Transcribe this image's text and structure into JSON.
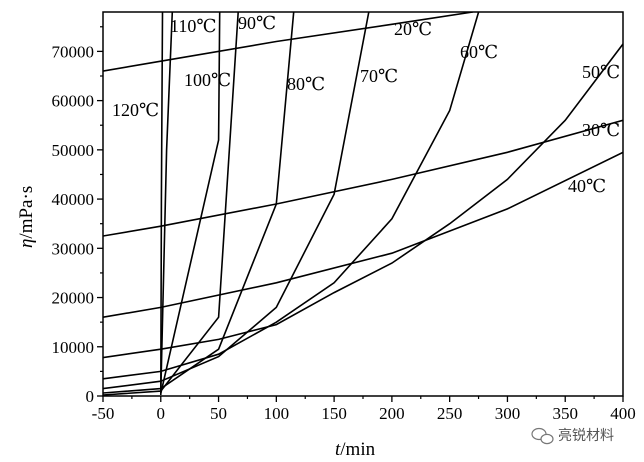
{
  "chart_data": {
    "type": "line",
    "title": "",
    "xlabel": {
      "italic": "t",
      "rest": "/min"
    },
    "ylabel": {
      "italic": "η",
      "rest": "/mPa·s"
    },
    "xlim": [
      -50,
      400
    ],
    "ylim": [
      0,
      78000
    ],
    "xticks": [
      -50,
      0,
      50,
      100,
      150,
      200,
      250,
      300,
      350,
      400
    ],
    "yticks": [
      0,
      10000,
      20000,
      30000,
      40000,
      50000,
      60000,
      70000
    ],
    "grid": false,
    "series": [
      {
        "name": "20℃",
        "x": [
          -50,
          0,
          100,
          200,
          270
        ],
        "y": [
          66000,
          68000,
          72000,
          75500,
          78000
        ]
      },
      {
        "name": "30℃",
        "x": [
          -50,
          0,
          100,
          200,
          300,
          400
        ],
        "y": [
          32500,
          34500,
          39000,
          44000,
          49500,
          56000
        ]
      },
      {
        "name": "40℃",
        "x": [
          -50,
          0,
          100,
          200,
          300,
          400
        ],
        "y": [
          16000,
          18000,
          23000,
          29000,
          38000,
          49500
        ]
      },
      {
        "name": "50℃",
        "x": [
          -50,
          0,
          50,
          100,
          150,
          200,
          250,
          300,
          350,
          400
        ],
        "y": [
          7800,
          9500,
          11500,
          14500,
          21000,
          27000,
          35000,
          44000,
          56000,
          71500
        ]
      },
      {
        "name": "60℃",
        "x": [
          -50,
          0,
          50,
          100,
          150,
          200,
          250,
          275
        ],
        "y": [
          3500,
          5000,
          8500,
          15000,
          23000,
          36000,
          58000,
          78000
        ]
      },
      {
        "name": "70℃",
        "x": [
          -50,
          0,
          50,
          100,
          150,
          180
        ],
        "y": [
          1500,
          3000,
          8000,
          18000,
          41000,
          78000
        ]
      },
      {
        "name": "80℃",
        "x": [
          -50,
          0,
          50,
          100,
          115
        ],
        "y": [
          600,
          1500,
          9500,
          39000,
          78000
        ]
      },
      {
        "name": "90℃",
        "x": [
          -50,
          0,
          50,
          67
        ],
        "y": [
          200,
          1000,
          16000,
          78000
        ]
      },
      {
        "name": "100℃",
        "x": [
          0,
          50,
          51
        ],
        "y": [
          500,
          52000,
          78000
        ]
      },
      {
        "name": "110℃",
        "x": [
          0,
          5,
          10
        ],
        "y": [
          800,
          50000,
          78000
        ]
      },
      {
        "name": "120℃",
        "x": [
          0,
          0.5,
          1.5
        ],
        "y": [
          200,
          40000,
          78000
        ]
      }
    ]
  },
  "labels": {
    "l20": "20℃",
    "l30": "30℃",
    "l40": "40℃",
    "l50": "50℃",
    "l60": "60℃",
    "l70": "70℃",
    "l80": "80℃",
    "l90": "90℃",
    "l100": "100℃",
    "l110": "110℃",
    "l120": "120℃"
  },
  "watermark": {
    "text": "亮锐材料",
    "icon": "wechat-icon"
  }
}
